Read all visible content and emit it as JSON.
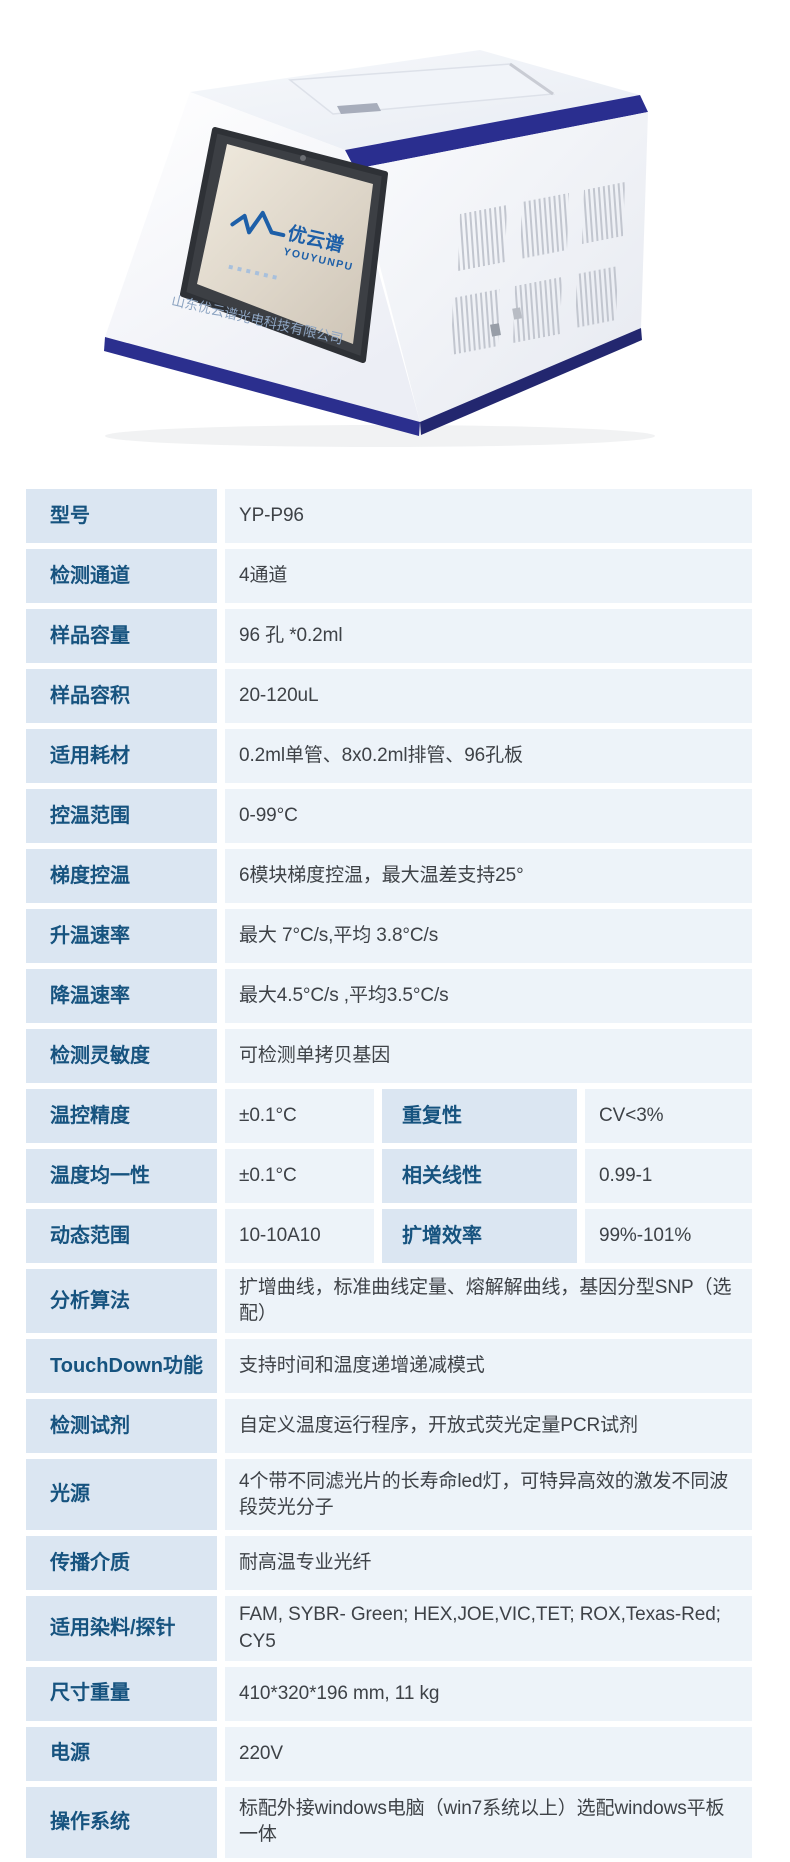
{
  "product_image": {
    "alt": "荧光定量PCR仪产品图",
    "logo_cn": "优云谱",
    "logo_en": "YOUYUNPU",
    "screen_company": "山东优云谱光电科技有限公司",
    "accent_navy": "#2a2e8f"
  },
  "spec_table": {
    "label_bg": "#dbe6f2",
    "value_bg": "#edf3f9",
    "label_color": "#16537f",
    "value_color": "#3e4247",
    "rows": [
      {
        "label": "型号",
        "value": "YP-P96"
      },
      {
        "label": "检测通道",
        "value": "4通道"
      },
      {
        "label": "样品容量",
        "value": "96 孔 *0.2ml"
      },
      {
        "label": "样品容积",
        "value": "20-120uL"
      },
      {
        "label": "适用耗材",
        "value": "0.2ml单管、8x0.2ml排管、96孔板"
      },
      {
        "label": "控温范围",
        "value": "0-99°C"
      },
      {
        "label": "梯度控温",
        "value": "6模块梯度控温，最大温差支持25°"
      },
      {
        "label": "升温速率",
        "value": "最大 7°C/s,平均 3.8°C/s"
      },
      {
        "label": "降温速率",
        "value": "最大4.5°C/s ,平均3.5°C/s"
      },
      {
        "label": "检测灵敏度",
        "value": "可检测单拷贝基因"
      },
      {
        "label": "温控精度",
        "value": "±0.1°C",
        "label2": "重复性",
        "value2": "CV<3%"
      },
      {
        "label": "温度均一性",
        "value": "±0.1°C",
        "label2": "相关线性",
        "value2": "0.99-1"
      },
      {
        "label": "动态范围",
        "value": "10-10A10",
        "label2": "扩增效率",
        "value2": "99%-101%"
      },
      {
        "label": "分析算法",
        "value": "扩增曲线，标准曲线定量、熔解解曲线，基因分型SNP（选配）"
      },
      {
        "label": "TouchDown功能",
        "value": "支持时间和温度递增递减模式"
      },
      {
        "label": "检测试剂",
        "value": "自定义温度运行程序，开放式荧光定量PCR试剂"
      },
      {
        "label": "光源",
        "value": "4个带不同滤光片的长寿命led灯，可特异高效的激发不同波段荧光分子",
        "tall": true
      },
      {
        "label": "传播介质",
        "value": "耐高温专业光纤"
      },
      {
        "label": "适用染料/探针",
        "value": "FAM, SYBR- Green; HEX,JOE,VIC,TET; ROX,Texas-Red; CY5"
      },
      {
        "label": "尺寸重量",
        "value": "410*320*196 mm, 11 kg"
      },
      {
        "label": "电源",
        "value": "220V"
      },
      {
        "label": "操作系统",
        "value": "标配外接windows电脑（win7系统以上）选配windows平板一体",
        "tall": true
      }
    ]
  }
}
